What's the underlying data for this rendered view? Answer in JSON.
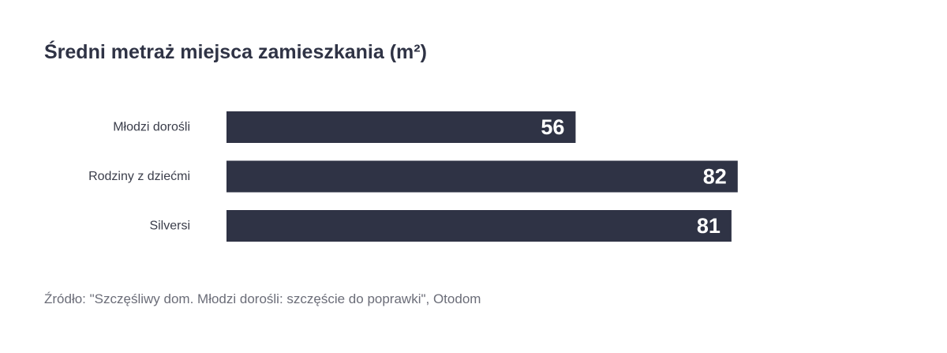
{
  "chart_data": {
    "type": "bar",
    "orientation": "horizontal",
    "title": "Średni metraż miejsca zamieszkania (m²)",
    "categories": [
      "Młodzi dorośli",
      "Rodziny z dziećmi",
      "Silversi"
    ],
    "values": [
      56,
      82,
      81
    ],
    "xlim": [
      0,
      100
    ],
    "grid": false,
    "bar_color": "#2f3345",
    "label_color": "#ffffff"
  },
  "source": "Źródło: \"Szczęśliwy dom. Młodzi dorośli: szczęście do poprawki\", Otodom"
}
